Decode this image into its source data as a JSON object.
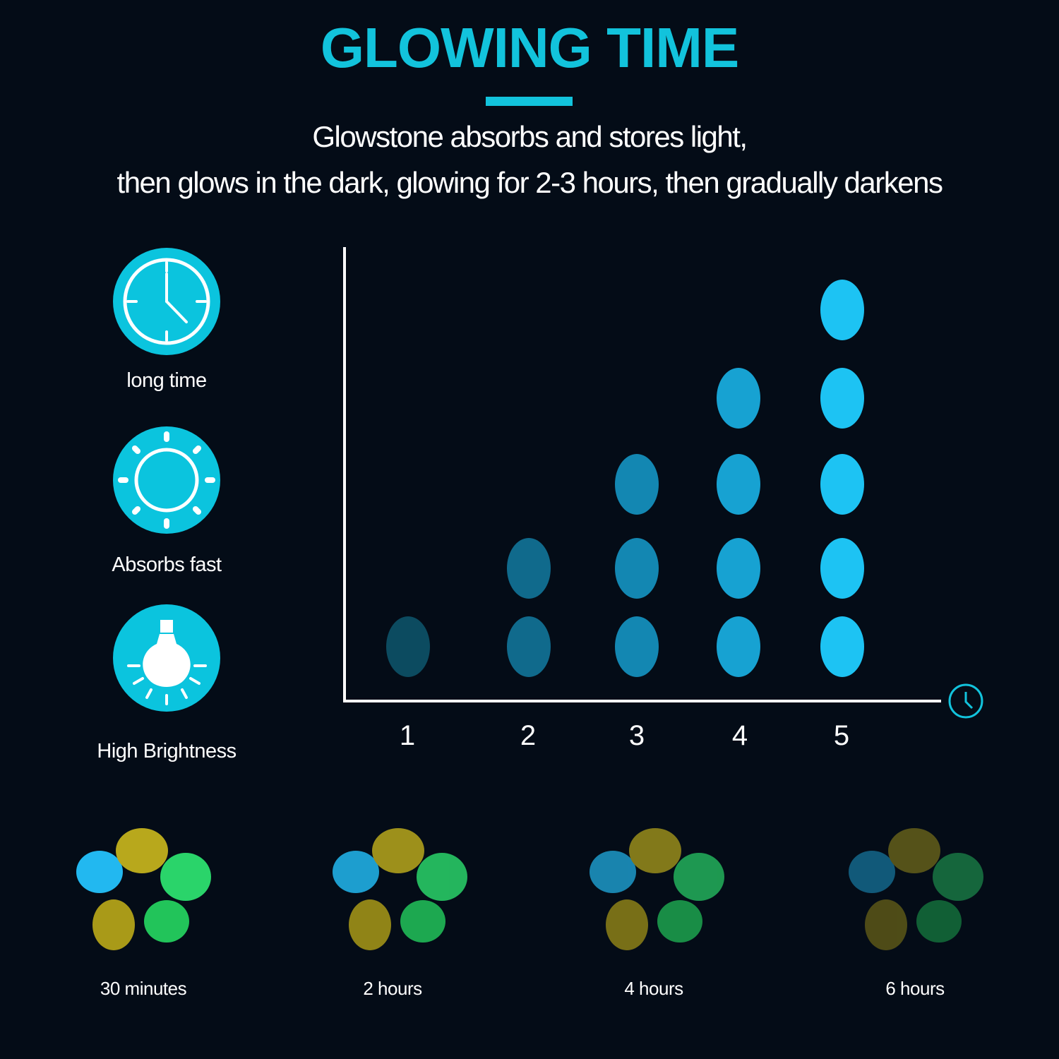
{
  "header": {
    "title": "GLOWING TIME",
    "subtitle_line1": "Glowstone absorbs and stores light,",
    "subtitle_line2": "then glows in the dark, glowing for 2-3 hours, then gradually darkens"
  },
  "features": [
    {
      "label": "long time",
      "icon": "clock-icon"
    },
    {
      "label": "Absorbs fast",
      "icon": "sun-icon"
    },
    {
      "label": "High Brightness",
      "icon": "light-bulb-icon"
    }
  ],
  "colors": {
    "accent": "#12c3dc",
    "background": "#040c17"
  },
  "chart_data": {
    "type": "scatter",
    "categories": [
      "1",
      "2",
      "3",
      "4",
      "5"
    ],
    "values": [
      1,
      2,
      3,
      4,
      5
    ],
    "x_axis_icon": "clock-icon",
    "stone_colors": [
      "#0c4b60",
      "#106a8c",
      "#1387b2",
      "#17a2d2",
      "#1dc3f3"
    ]
  },
  "stages": [
    {
      "label": "30 minutes",
      "brightness": 1.0
    },
    {
      "label": "2 hours",
      "brightness": 0.85
    },
    {
      "label": "4 hours",
      "brightness": 0.7
    },
    {
      "label": "6 hours",
      "brightness": 0.45
    }
  ]
}
